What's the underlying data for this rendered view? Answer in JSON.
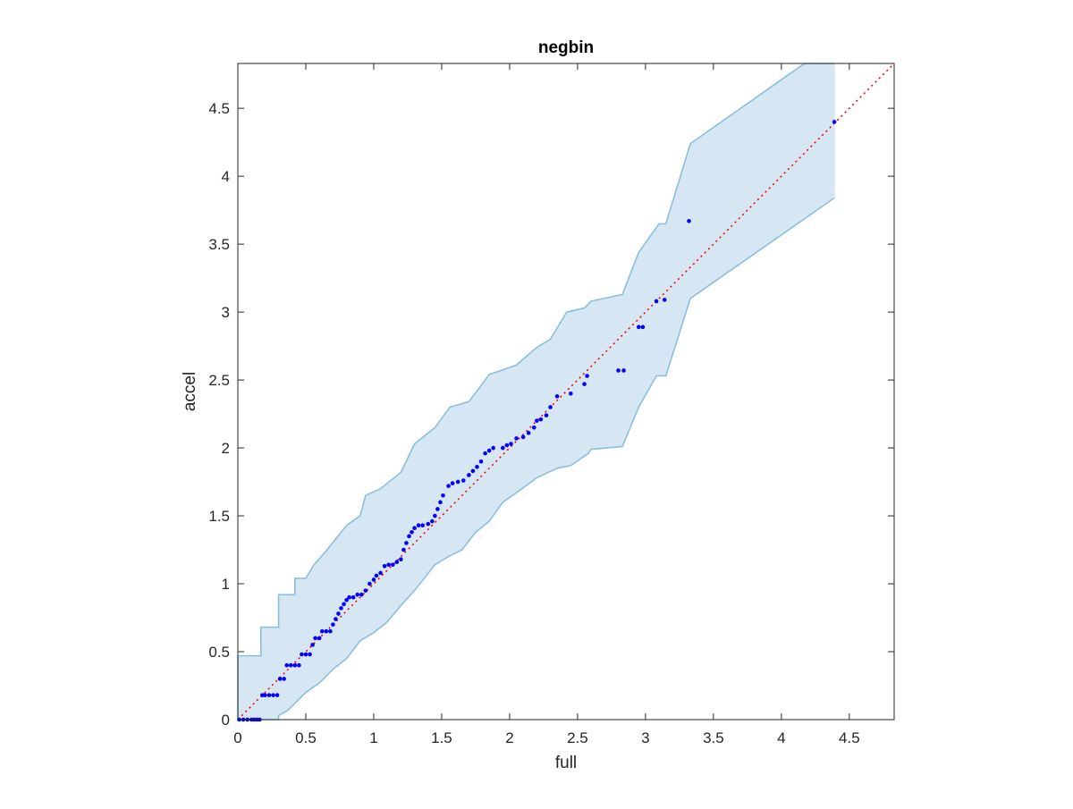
{
  "chart_data": {
    "type": "scatter",
    "title": "negbin",
    "xlabel": "full",
    "ylabel": "accel",
    "xlim": [
      0,
      4.83
    ],
    "ylim": [
      0,
      4.83
    ],
    "xticks": [
      0,
      0.5,
      1,
      1.5,
      2,
      2.5,
      3,
      3.5,
      4,
      4.5
    ],
    "yticks": [
      0,
      0.5,
      1,
      1.5,
      2,
      2.5,
      3,
      3.5,
      4,
      4.5
    ],
    "tick_labels": [
      "0",
      "0.5",
      "1",
      "1.5",
      "2",
      "2.5",
      "3",
      "3.5",
      "4",
      "4.5"
    ],
    "grid": false,
    "legend": "none",
    "colors": {
      "points": "#0000ff",
      "reference": "#ff0000",
      "band_fill": "#d6e6f3",
      "band_edge": "#86bcdc",
      "axes": "#262626"
    },
    "reference_line": {
      "style": "dotted",
      "from": [
        0,
        0
      ],
      "to": [
        4.83,
        4.83
      ]
    },
    "confidence_band": {
      "upper": [
        [
          0,
          0.47
        ],
        [
          0.17,
          0.47
        ],
        [
          0.17,
          0.68
        ],
        [
          0.3,
          0.68
        ],
        [
          0.3,
          0.92
        ],
        [
          0.42,
          0.92
        ],
        [
          0.42,
          1.04
        ],
        [
          0.5,
          1.04
        ],
        [
          0.56,
          1.14
        ],
        [
          0.64,
          1.23
        ],
        [
          0.72,
          1.33
        ],
        [
          0.8,
          1.43
        ],
        [
          0.9,
          1.5
        ],
        [
          0.94,
          1.65
        ],
        [
          1.05,
          1.7
        ],
        [
          1.2,
          1.82
        ],
        [
          1.3,
          2.03
        ],
        [
          1.45,
          2.15
        ],
        [
          1.56,
          2.3
        ],
        [
          1.7,
          2.34
        ],
        [
          1.85,
          2.54
        ],
        [
          2.05,
          2.61
        ],
        [
          2.2,
          2.74
        ],
        [
          2.3,
          2.8
        ],
        [
          2.42,
          3.0
        ],
        [
          2.55,
          3.03
        ],
        [
          2.6,
          3.08
        ],
        [
          2.83,
          3.13
        ],
        [
          2.95,
          3.44
        ],
        [
          3.1,
          3.65
        ],
        [
          3.15,
          3.65
        ],
        [
          3.33,
          4.24
        ],
        [
          4.17,
          4.83
        ],
        [
          4.39,
          4.83
        ]
      ],
      "lower": [
        [
          0,
          0
        ],
        [
          0.3,
          0
        ],
        [
          0.3,
          0.03
        ],
        [
          0.37,
          0.07
        ],
        [
          0.5,
          0.2
        ],
        [
          0.6,
          0.27
        ],
        [
          0.7,
          0.37
        ],
        [
          0.8,
          0.45
        ],
        [
          0.9,
          0.58
        ],
        [
          1.0,
          0.64
        ],
        [
          1.1,
          0.72
        ],
        [
          1.2,
          0.84
        ],
        [
          1.3,
          0.95
        ],
        [
          1.38,
          1.05
        ],
        [
          1.45,
          1.14
        ],
        [
          1.55,
          1.2
        ],
        [
          1.65,
          1.25
        ],
        [
          1.75,
          1.38
        ],
        [
          1.85,
          1.46
        ],
        [
          1.95,
          1.6
        ],
        [
          2.05,
          1.67
        ],
        [
          2.2,
          1.78
        ],
        [
          2.35,
          1.85
        ],
        [
          2.45,
          1.87
        ],
        [
          2.58,
          1.96
        ],
        [
          2.6,
          1.99
        ],
        [
          2.83,
          2.01
        ],
        [
          2.95,
          2.3
        ],
        [
          3.08,
          2.53
        ],
        [
          3.15,
          2.53
        ],
        [
          3.33,
          3.1
        ],
        [
          4.39,
          3.84
        ]
      ]
    },
    "points": [
      [
        0.01,
        0.0
      ],
      [
        0.04,
        0.0
      ],
      [
        0.07,
        0.0
      ],
      [
        0.1,
        0.0
      ],
      [
        0.12,
        0.0
      ],
      [
        0.14,
        0.0
      ],
      [
        0.16,
        0.0
      ],
      [
        0.18,
        0.18
      ],
      [
        0.2,
        0.18
      ],
      [
        0.23,
        0.18
      ],
      [
        0.26,
        0.18
      ],
      [
        0.29,
        0.18
      ],
      [
        0.31,
        0.3
      ],
      [
        0.34,
        0.3
      ],
      [
        0.36,
        0.4
      ],
      [
        0.39,
        0.4
      ],
      [
        0.42,
        0.4
      ],
      [
        0.45,
        0.4
      ],
      [
        0.47,
        0.48
      ],
      [
        0.5,
        0.48
      ],
      [
        0.53,
        0.48
      ],
      [
        0.55,
        0.55
      ],
      [
        0.57,
        0.6
      ],
      [
        0.6,
        0.6
      ],
      [
        0.62,
        0.65
      ],
      [
        0.65,
        0.65
      ],
      [
        0.68,
        0.65
      ],
      [
        0.7,
        0.7
      ],
      [
        0.72,
        0.74
      ],
      [
        0.74,
        0.78
      ],
      [
        0.76,
        0.82
      ],
      [
        0.78,
        0.85
      ],
      [
        0.8,
        0.88
      ],
      [
        0.82,
        0.9
      ],
      [
        0.85,
        0.9
      ],
      [
        0.88,
        0.92
      ],
      [
        0.91,
        0.92
      ],
      [
        0.94,
        0.95
      ],
      [
        0.97,
        1.0
      ],
      [
        1.0,
        1.03
      ],
      [
        1.02,
        1.06
      ],
      [
        1.05,
        1.08
      ],
      [
        1.08,
        1.13
      ],
      [
        1.11,
        1.14
      ],
      [
        1.14,
        1.14
      ],
      [
        1.17,
        1.16
      ],
      [
        1.2,
        1.18
      ],
      [
        1.22,
        1.25
      ],
      [
        1.24,
        1.3
      ],
      [
        1.26,
        1.35
      ],
      [
        1.28,
        1.38
      ],
      [
        1.3,
        1.41
      ],
      [
        1.33,
        1.43
      ],
      [
        1.36,
        1.43
      ],
      [
        1.4,
        1.44
      ],
      [
        1.43,
        1.46
      ],
      [
        1.45,
        1.5
      ],
      [
        1.47,
        1.55
      ],
      [
        1.49,
        1.6
      ],
      [
        1.51,
        1.65
      ],
      [
        1.55,
        1.72
      ],
      [
        1.58,
        1.74
      ],
      [
        1.62,
        1.75
      ],
      [
        1.66,
        1.76
      ],
      [
        1.7,
        1.8
      ],
      [
        1.73,
        1.83
      ],
      [
        1.76,
        1.86
      ],
      [
        1.79,
        1.9
      ],
      [
        1.82,
        1.96
      ],
      [
        1.85,
        1.98
      ],
      [
        1.88,
        2.0
      ],
      [
        1.95,
        2.0
      ],
      [
        1.98,
        2.02
      ],
      [
        2.01,
        2.03
      ],
      [
        2.05,
        2.07
      ],
      [
        2.1,
        2.08
      ],
      [
        2.14,
        2.11
      ],
      [
        2.18,
        2.15
      ],
      [
        2.2,
        2.2
      ],
      [
        2.23,
        2.21
      ],
      [
        2.27,
        2.24
      ],
      [
        2.3,
        2.3
      ],
      [
        2.35,
        2.38
      ],
      [
        2.45,
        2.4
      ],
      [
        2.55,
        2.47
      ],
      [
        2.57,
        2.53
      ],
      [
        2.8,
        2.57
      ],
      [
        2.84,
        2.57
      ],
      [
        2.95,
        2.89
      ],
      [
        2.98,
        2.89
      ],
      [
        3.08,
        3.08
      ],
      [
        3.14,
        3.09
      ],
      [
        3.32,
        3.67
      ],
      [
        4.39,
        4.4
      ]
    ]
  }
}
